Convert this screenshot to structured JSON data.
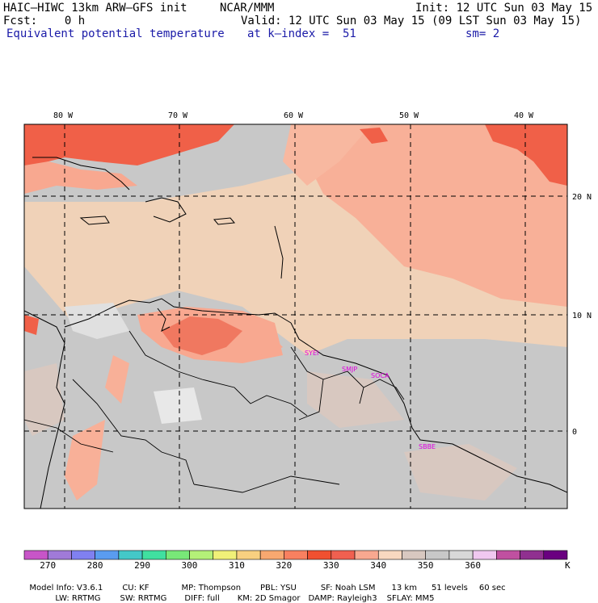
{
  "header": {
    "model": "HAIC–HIWC 13km ARW–GFS init",
    "org": "NCAR/MMM",
    "init": "Init: 12 UTC Sun 03 May 15",
    "fcst": "Fcst:    0 h",
    "valid": "Valid: 12 UTC Sun 03 May 15 (09 LST Sun 03 May 15)",
    "field": "Equivalent potential temperature",
    "kindex": "at k–index =  51",
    "sm": "sm= 2"
  },
  "map": {
    "lon_labels": [
      "80 W",
      "70 W",
      "60 W",
      "50 W",
      "40 W"
    ],
    "lat_labels": [
      "20 N",
      "10 N",
      "0"
    ],
    "stations": [
      "SYEI",
      "SMJP",
      "SOCA",
      "SBBE"
    ]
  },
  "colorbar": {
    "colors": [
      "#c855c8",
      "#a07ad8",
      "#8080f0",
      "#5a9cf0",
      "#44c8c8",
      "#40e0a0",
      "#78e878",
      "#b4f078",
      "#f0f078",
      "#f8d080",
      "#f8a870",
      "#f88060",
      "#f05030",
      "#f06050",
      "#f8a890",
      "#f8d8c0",
      "#d8c8c0",
      "#c8c8c8",
      "#d8d8d8",
      "#f0c8f0",
      "#c050a0",
      "#903090",
      "#6a0080"
    ],
    "labels": [
      "270",
      "280",
      "290",
      "300",
      "310",
      "320",
      "330",
      "340",
      "350",
      "360"
    ],
    "unit": "K"
  },
  "footer": {
    "line1": [
      "Model Info: V3.6.1",
      "CU: KF",
      "MP: Thompson",
      "PBL: YSU",
      "SF: Noah LSM",
      "13 km",
      "51 levels",
      "60 sec"
    ],
    "line2": [
      "LW: RRTMG",
      "SW: RRTMG",
      "DIFF: full",
      "KM: 2D Smagor",
      "DAMP: Rayleigh3",
      "SFLAY: MM5"
    ]
  }
}
